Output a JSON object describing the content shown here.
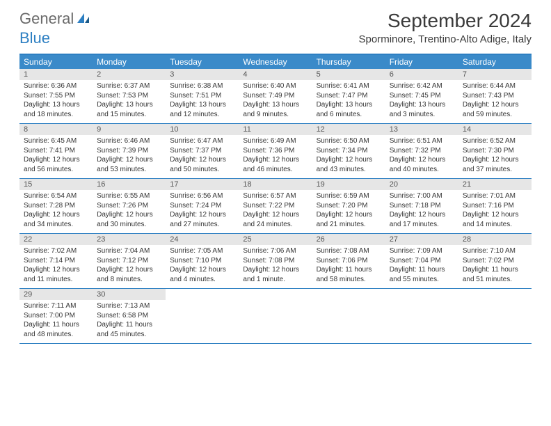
{
  "logo": {
    "text1": "General",
    "text2": "Blue"
  },
  "title": "September 2024",
  "location": "Sporminore, Trentino-Alto Adige, Italy",
  "colors": {
    "header_bg": "#3a8ac9",
    "header_text": "#ffffff",
    "rule": "#2d7fc2",
    "daynum_bg": "#e6e6e6",
    "text": "#333333",
    "logo_gray": "#6a6a6a",
    "logo_blue": "#2d7fc2",
    "page_bg": "#ffffff"
  },
  "fonts": {
    "month_title_pt": 28,
    "location_pt": 15,
    "weekday_pt": 12,
    "daynum_pt": 11,
    "cell_pt": 10
  },
  "weekdays": [
    "Sunday",
    "Monday",
    "Tuesday",
    "Wednesday",
    "Thursday",
    "Friday",
    "Saturday"
  ],
  "weeks": [
    [
      {
        "n": "1",
        "sr": "Sunrise: 6:36 AM",
        "ss": "Sunset: 7:55 PM",
        "d1": "Daylight: 13 hours",
        "d2": "and 18 minutes."
      },
      {
        "n": "2",
        "sr": "Sunrise: 6:37 AM",
        "ss": "Sunset: 7:53 PM",
        "d1": "Daylight: 13 hours",
        "d2": "and 15 minutes."
      },
      {
        "n": "3",
        "sr": "Sunrise: 6:38 AM",
        "ss": "Sunset: 7:51 PM",
        "d1": "Daylight: 13 hours",
        "d2": "and 12 minutes."
      },
      {
        "n": "4",
        "sr": "Sunrise: 6:40 AM",
        "ss": "Sunset: 7:49 PM",
        "d1": "Daylight: 13 hours",
        "d2": "and 9 minutes."
      },
      {
        "n": "5",
        "sr": "Sunrise: 6:41 AM",
        "ss": "Sunset: 7:47 PM",
        "d1": "Daylight: 13 hours",
        "d2": "and 6 minutes."
      },
      {
        "n": "6",
        "sr": "Sunrise: 6:42 AM",
        "ss": "Sunset: 7:45 PM",
        "d1": "Daylight: 13 hours",
        "d2": "and 3 minutes."
      },
      {
        "n": "7",
        "sr": "Sunrise: 6:44 AM",
        "ss": "Sunset: 7:43 PM",
        "d1": "Daylight: 12 hours",
        "d2": "and 59 minutes."
      }
    ],
    [
      {
        "n": "8",
        "sr": "Sunrise: 6:45 AM",
        "ss": "Sunset: 7:41 PM",
        "d1": "Daylight: 12 hours",
        "d2": "and 56 minutes."
      },
      {
        "n": "9",
        "sr": "Sunrise: 6:46 AM",
        "ss": "Sunset: 7:39 PM",
        "d1": "Daylight: 12 hours",
        "d2": "and 53 minutes."
      },
      {
        "n": "10",
        "sr": "Sunrise: 6:47 AM",
        "ss": "Sunset: 7:37 PM",
        "d1": "Daylight: 12 hours",
        "d2": "and 50 minutes."
      },
      {
        "n": "11",
        "sr": "Sunrise: 6:49 AM",
        "ss": "Sunset: 7:36 PM",
        "d1": "Daylight: 12 hours",
        "d2": "and 46 minutes."
      },
      {
        "n": "12",
        "sr": "Sunrise: 6:50 AM",
        "ss": "Sunset: 7:34 PM",
        "d1": "Daylight: 12 hours",
        "d2": "and 43 minutes."
      },
      {
        "n": "13",
        "sr": "Sunrise: 6:51 AM",
        "ss": "Sunset: 7:32 PM",
        "d1": "Daylight: 12 hours",
        "d2": "and 40 minutes."
      },
      {
        "n": "14",
        "sr": "Sunrise: 6:52 AM",
        "ss": "Sunset: 7:30 PM",
        "d1": "Daylight: 12 hours",
        "d2": "and 37 minutes."
      }
    ],
    [
      {
        "n": "15",
        "sr": "Sunrise: 6:54 AM",
        "ss": "Sunset: 7:28 PM",
        "d1": "Daylight: 12 hours",
        "d2": "and 34 minutes."
      },
      {
        "n": "16",
        "sr": "Sunrise: 6:55 AM",
        "ss": "Sunset: 7:26 PM",
        "d1": "Daylight: 12 hours",
        "d2": "and 30 minutes."
      },
      {
        "n": "17",
        "sr": "Sunrise: 6:56 AM",
        "ss": "Sunset: 7:24 PM",
        "d1": "Daylight: 12 hours",
        "d2": "and 27 minutes."
      },
      {
        "n": "18",
        "sr": "Sunrise: 6:57 AM",
        "ss": "Sunset: 7:22 PM",
        "d1": "Daylight: 12 hours",
        "d2": "and 24 minutes."
      },
      {
        "n": "19",
        "sr": "Sunrise: 6:59 AM",
        "ss": "Sunset: 7:20 PM",
        "d1": "Daylight: 12 hours",
        "d2": "and 21 minutes."
      },
      {
        "n": "20",
        "sr": "Sunrise: 7:00 AM",
        "ss": "Sunset: 7:18 PM",
        "d1": "Daylight: 12 hours",
        "d2": "and 17 minutes."
      },
      {
        "n": "21",
        "sr": "Sunrise: 7:01 AM",
        "ss": "Sunset: 7:16 PM",
        "d1": "Daylight: 12 hours",
        "d2": "and 14 minutes."
      }
    ],
    [
      {
        "n": "22",
        "sr": "Sunrise: 7:02 AM",
        "ss": "Sunset: 7:14 PM",
        "d1": "Daylight: 12 hours",
        "d2": "and 11 minutes."
      },
      {
        "n": "23",
        "sr": "Sunrise: 7:04 AM",
        "ss": "Sunset: 7:12 PM",
        "d1": "Daylight: 12 hours",
        "d2": "and 8 minutes."
      },
      {
        "n": "24",
        "sr": "Sunrise: 7:05 AM",
        "ss": "Sunset: 7:10 PM",
        "d1": "Daylight: 12 hours",
        "d2": "and 4 minutes."
      },
      {
        "n": "25",
        "sr": "Sunrise: 7:06 AM",
        "ss": "Sunset: 7:08 PM",
        "d1": "Daylight: 12 hours",
        "d2": "and 1 minute."
      },
      {
        "n": "26",
        "sr": "Sunrise: 7:08 AM",
        "ss": "Sunset: 7:06 PM",
        "d1": "Daylight: 11 hours",
        "d2": "and 58 minutes."
      },
      {
        "n": "27",
        "sr": "Sunrise: 7:09 AM",
        "ss": "Sunset: 7:04 PM",
        "d1": "Daylight: 11 hours",
        "d2": "and 55 minutes."
      },
      {
        "n": "28",
        "sr": "Sunrise: 7:10 AM",
        "ss": "Sunset: 7:02 PM",
        "d1": "Daylight: 11 hours",
        "d2": "and 51 minutes."
      }
    ],
    [
      {
        "n": "29",
        "sr": "Sunrise: 7:11 AM",
        "ss": "Sunset: 7:00 PM",
        "d1": "Daylight: 11 hours",
        "d2": "and 48 minutes."
      },
      {
        "n": "30",
        "sr": "Sunrise: 7:13 AM",
        "ss": "Sunset: 6:58 PM",
        "d1": "Daylight: 11 hours",
        "d2": "and 45 minutes."
      },
      null,
      null,
      null,
      null,
      null
    ]
  ]
}
